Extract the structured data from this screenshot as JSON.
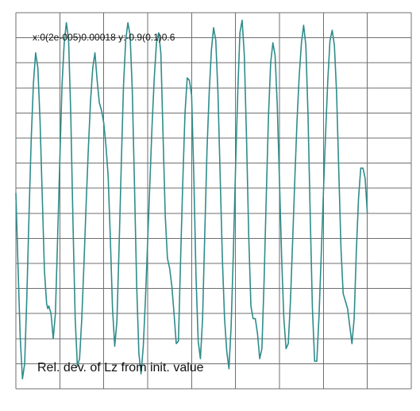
{
  "chart_data": {
    "type": "line",
    "range_label": "x:0(2e-005)0.00018 y:-0.9(0.1)0.6",
    "caption": "Rel. dev. of Lz from init. value",
    "xlim": [
      0,
      0.00018
    ],
    "ylim": [
      -0.9,
      0.6
    ],
    "x_step": 2e-05,
    "y_step": 0.1,
    "grid": true,
    "line_color": "#2f8c8c",
    "grid_color": "#6f6f6f",
    "series": [
      {
        "x": [
          0,
          1e-06,
          2e-06,
          3e-06,
          4e-06,
          5e-06,
          6e-06,
          7e-06,
          8e-06,
          9e-06,
          1e-05,
          1.1e-05,
          1.2e-05,
          1.3e-05,
          1.4e-05,
          1.45e-05,
          1.5e-05,
          1.6e-05,
          1.7e-05,
          1.8e-05,
          1.9e-05,
          2e-05,
          2.1e-05,
          2.2e-05,
          2.3e-05,
          2.4e-05,
          2.5e-05,
          2.6e-05,
          2.7e-05,
          2.8e-05,
          2.9e-05,
          3e-05,
          3.1e-05,
          3.2e-05,
          3.3e-05,
          3.4e-05,
          3.5e-05,
          3.6e-05,
          3.7e-05,
          3.8e-05,
          3.9e-05,
          4e-05,
          4.1e-05,
          4.2e-05,
          4.3e-05,
          4.4e-05,
          4.5e-05,
          4.6e-05,
          4.7e-05,
          4.8e-05,
          4.9e-05,
          5e-05,
          5.1e-05,
          5.2e-05,
          5.3e-05,
          5.4e-05,
          5.5e-05,
          5.6e-05,
          5.7e-05,
          5.8e-05,
          5.9e-05,
          6e-05,
          6.1e-05,
          6.2e-05,
          6.3e-05,
          6.4e-05,
          6.5e-05,
          6.6e-05,
          6.7e-05,
          6.8e-05,
          6.9e-05,
          7e-05,
          7.1e-05,
          7.2e-05,
          7.3e-05,
          7.4e-05,
          7.5e-05,
          7.6e-05,
          7.7e-05,
          7.8e-05,
          7.9e-05,
          8e-05,
          8.1e-05,
          8.2e-05,
          8.3e-05,
          8.4e-05,
          8.5e-05,
          8.6e-05,
          8.7e-05,
          8.8e-05,
          8.9e-05,
          9e-05,
          9.1e-05,
          9.2e-05,
          9.3e-05,
          9.4e-05,
          9.5e-05,
          9.6e-05,
          9.7e-05,
          9.8e-05,
          9.9e-05,
          0.0001,
          0.000101,
          0.000102,
          0.000103,
          0.000104,
          0.000105,
          0.000106,
          0.000107,
          0.000108,
          0.000109,
          0.00011,
          0.000111,
          0.000112,
          0.000113,
          0.000114,
          0.000115,
          0.000116,
          0.000117,
          0.000118,
          0.000119,
          0.00012,
          0.000121,
          0.000122,
          0.000123,
          0.000124,
          0.000125,
          0.000126,
          0.000127,
          0.000128,
          0.000129,
          0.00013,
          0.000131,
          0.000132,
          0.000133,
          0.000134,
          0.000135,
          0.000136,
          0.000137,
          0.000138,
          0.000139,
          0.00014,
          0.000141,
          0.000142,
          0.000143,
          0.000144,
          0.000145,
          0.000146,
          0.000147,
          0.000148,
          0.000149,
          0.00015,
          0.000151,
          0.000152,
          0.000153,
          0.000154,
          0.000155,
          0.000156,
          0.000157,
          0.000158,
          0.000159,
          0.00016
        ],
        "y": [
          -0.12,
          -0.42,
          -0.7,
          -0.86,
          -0.8,
          -0.53,
          -0.2,
          0.1,
          0.32,
          0.44,
          0.38,
          0.17,
          -0.13,
          -0.43,
          -0.56,
          -0.58,
          -0.57,
          -0.6,
          -0.7,
          -0.6,
          -0.3,
          0.01,
          0.31,
          0.48,
          0.56,
          0.49,
          0.19,
          -0.24,
          -0.62,
          -0.81,
          -0.78,
          -0.62,
          -0.4,
          -0.16,
          0.06,
          0.25,
          0.38,
          0.44,
          0.33,
          0.24,
          0.21,
          0.16,
          0.07,
          -0.05,
          -0.3,
          -0.58,
          -0.73,
          -0.63,
          -0.33,
          0.0,
          0.31,
          0.49,
          0.56,
          0.51,
          0.29,
          -0.09,
          -0.49,
          -0.76,
          -0.84,
          -0.73,
          -0.54,
          -0.31,
          -0.08,
          0.15,
          0.34,
          0.48,
          0.52,
          0.44,
          0.11,
          -0.21,
          -0.38,
          -0.42,
          -0.49,
          -0.6,
          -0.72,
          -0.71,
          -0.38,
          -0.07,
          0.2,
          0.34,
          0.33,
          0.27,
          -0.05,
          -0.45,
          -0.71,
          -0.78,
          -0.62,
          -0.28,
          0.05,
          0.28,
          0.45,
          0.54,
          0.49,
          0.28,
          -0.05,
          -0.38,
          -0.62,
          -0.75,
          -0.82,
          -0.65,
          -0.36,
          -0.02,
          0.28,
          0.52,
          0.57,
          0.43,
          0.1,
          -0.29,
          -0.57,
          -0.62,
          -0.62,
          -0.68,
          -0.78,
          -0.74,
          -0.47,
          -0.13,
          0.19,
          0.4,
          0.48,
          0.43,
          0.23,
          -0.07,
          -0.38,
          -0.62,
          -0.74,
          -0.72,
          -0.55,
          -0.31,
          -0.06,
          0.17,
          0.35,
          0.48,
          0.55,
          0.47,
          0.19,
          -0.21,
          -0.58,
          -0.79,
          -0.79,
          -0.61,
          -0.37,
          -0.12,
          0.12,
          0.33,
          0.49,
          0.53,
          0.47,
          0.28,
          -0.03,
          -0.34,
          -0.52,
          -0.55,
          -0.58,
          -0.65,
          -0.72,
          -0.62,
          -0.35,
          -0.14,
          -0.02,
          -0.02,
          -0.06,
          -0.2
        ]
      }
    ]
  }
}
